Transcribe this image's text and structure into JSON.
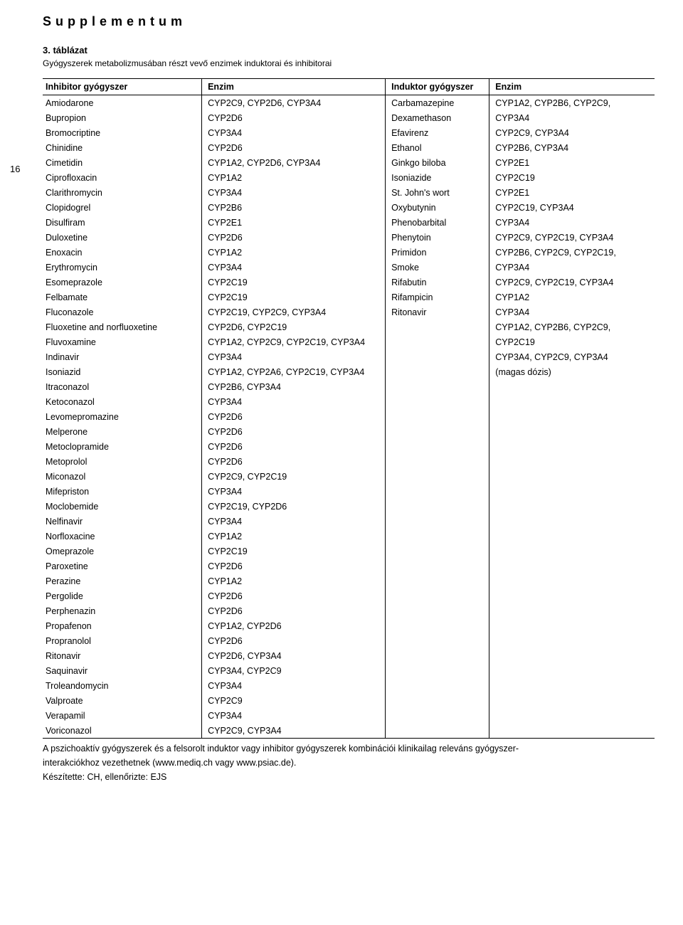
{
  "header": "Supplementum",
  "page_number": "16",
  "table_title": "3. táblázat",
  "table_subtitle": "Gyógyszerek metabolizmusában részt vevő enzimek induktorai és inhibitorai",
  "columns": {
    "c1": "Inhibitor gyógyszer",
    "c2": "Enzim",
    "c3": "Induktor gyógyszer",
    "c4": "Enzim"
  },
  "rows": [
    {
      "a": "Amiodarone",
      "b": "CYP2C9, CYP2D6, CYP3A4",
      "c": "Carbamazepine",
      "d": "CYP1A2, CYP2B6, CYP2C9,"
    },
    {
      "a": "Bupropion",
      "b": "CYP2D6",
      "c": "Dexamethason",
      "d": "CYP3A4"
    },
    {
      "a": "Bromocriptine",
      "b": "CYP3A4",
      "c": "Efavirenz",
      "d": "CYP2C9, CYP3A4"
    },
    {
      "a": "Chinidine",
      "b": "CYP2D6",
      "c": "Ethanol",
      "d": "CYP2B6, CYP3A4"
    },
    {
      "a": "Cimetidin",
      "b": "CYP1A2, CYP2D6, CYP3A4",
      "c": "Ginkgo biloba",
      "d": "CYP2E1"
    },
    {
      "a": "Ciprofloxacin",
      "b": "CYP1A2",
      "c": "Isoniazide",
      "d": "CYP2C19"
    },
    {
      "a": "Clarithromycin",
      "b": "CYP3A4",
      "c": "St. John's wort",
      "d": "CYP2E1"
    },
    {
      "a": "Clopidogrel",
      "b": "CYP2B6",
      "c": "Oxybutynin",
      "d": "CYP2C19, CYP3A4"
    },
    {
      "a": "Disulfiram",
      "b": "CYP2E1",
      "c": "Phenobarbital",
      "d": "CYP3A4"
    },
    {
      "a": "Duloxetine",
      "b": "CYP2D6",
      "c": "Phenytoin",
      "d": "CYP2C9, CYP2C19, CYP3A4"
    },
    {
      "a": "Enoxacin",
      "b": "CYP1A2",
      "c": "Primidon",
      "d": "CYP2B6, CYP2C9, CYP2C19,"
    },
    {
      "a": "Erythromycin",
      "b": "CYP3A4",
      "c": "Smoke",
      "d": "CYP3A4"
    },
    {
      "a": "Esomeprazole",
      "b": "CYP2C19",
      "c": "Rifabutin",
      "d": "CYP2C9, CYP2C19, CYP3A4"
    },
    {
      "a": "Felbamate",
      "b": "CYP2C19",
      "c": "Rifampicin",
      "d": "CYP1A2"
    },
    {
      "a": "Fluconazole",
      "b": "CYP2C19, CYP2C9, CYP3A4",
      "c": "Ritonavir",
      "d": "CYP3A4"
    },
    {
      "a": "Fluoxetine and norfluoxetine",
      "b": "CYP2D6, CYP2C19",
      "c": "",
      "d": "CYP1A2, CYP2B6, CYP2C9,"
    },
    {
      "a": "Fluvoxamine",
      "b": "CYP1A2, CYP2C9, CYP2C19, CYP3A4",
      "c": "",
      "d": "CYP2C19"
    },
    {
      "a": "Indinavir",
      "b": "CYP3A4",
      "c": "",
      "d": "CYP3A4, CYP2C9, CYP3A4"
    },
    {
      "a": "Isoniazid",
      "b": "CYP1A2, CYP2A6, CYP2C19, CYP3A4",
      "c": "",
      "d": "(magas dózis)"
    },
    {
      "a": "Itraconazol",
      "b": "CYP2B6, CYP3A4",
      "c": "",
      "d": ""
    },
    {
      "a": "Ketoconazol",
      "b": "CYP3A4",
      "c": "",
      "d": ""
    },
    {
      "a": "Levomepromazine",
      "b": "CYP2D6",
      "c": "",
      "d": ""
    },
    {
      "a": "Melperone",
      "b": "CYP2D6",
      "c": "",
      "d": ""
    },
    {
      "a": "Metoclopramide",
      "b": "CYP2D6",
      "c": "",
      "d": ""
    },
    {
      "a": "Metoprolol",
      "b": "CYP2D6",
      "c": "",
      "d": ""
    },
    {
      "a": "Miconazol",
      "b": "CYP2C9, CYP2C19",
      "c": "",
      "d": ""
    },
    {
      "a": "Mifepriston",
      "b": "CYP3A4",
      "c": "",
      "d": ""
    },
    {
      "a": "Moclobemide",
      "b": "CYP2C19, CYP2D6",
      "c": "",
      "d": ""
    },
    {
      "a": "Nelfinavir",
      "b": "CYP3A4",
      "c": "",
      "d": ""
    },
    {
      "a": "Norfloxacine",
      "b": "CYP1A2",
      "c": "",
      "d": ""
    },
    {
      "a": "Omeprazole",
      "b": "CYP2C19",
      "c": "",
      "d": ""
    },
    {
      "a": "Paroxetine",
      "b": "CYP2D6",
      "c": "",
      "d": ""
    },
    {
      "a": "Perazine",
      "b": "CYP1A2",
      "c": "",
      "d": ""
    },
    {
      "a": "Pergolide",
      "b": "CYP2D6",
      "c": "",
      "d": ""
    },
    {
      "a": "Perphenazin",
      "b": "CYP2D6",
      "c": "",
      "d": ""
    },
    {
      "a": "Propafenon",
      "b": "CYP1A2, CYP2D6",
      "c": "",
      "d": ""
    },
    {
      "a": "Propranolol",
      "b": "CYP2D6",
      "c": "",
      "d": ""
    },
    {
      "a": "Ritonavir",
      "b": "CYP2D6, CYP3A4",
      "c": "",
      "d": ""
    },
    {
      "a": "Saquinavir",
      "b": "CYP3A4, CYP2C9",
      "c": "",
      "d": ""
    },
    {
      "a": "Troleandomycin",
      "b": "CYP3A4",
      "c": "",
      "d": ""
    },
    {
      "a": "Valproate",
      "b": "CYP2C9",
      "c": "",
      "d": ""
    },
    {
      "a": "Verapamil",
      "b": "CYP3A4",
      "c": "",
      "d": ""
    },
    {
      "a": "Voriconazol",
      "b": "CYP2C9, CYP3A4",
      "c": "",
      "d": ""
    }
  ],
  "footer_line1": "A pszichoaktív gyógyszerek és a felsorolt induktor vagy inhibitor gyógyszerek kombinációi klinikailag releváns gyógyszer-",
  "footer_line2": "interakciókhoz vezethetnek (www.mediq.ch vagy www.psiac.de).",
  "footer_line3": "Készítette: CH, ellenőrizte: EJS"
}
